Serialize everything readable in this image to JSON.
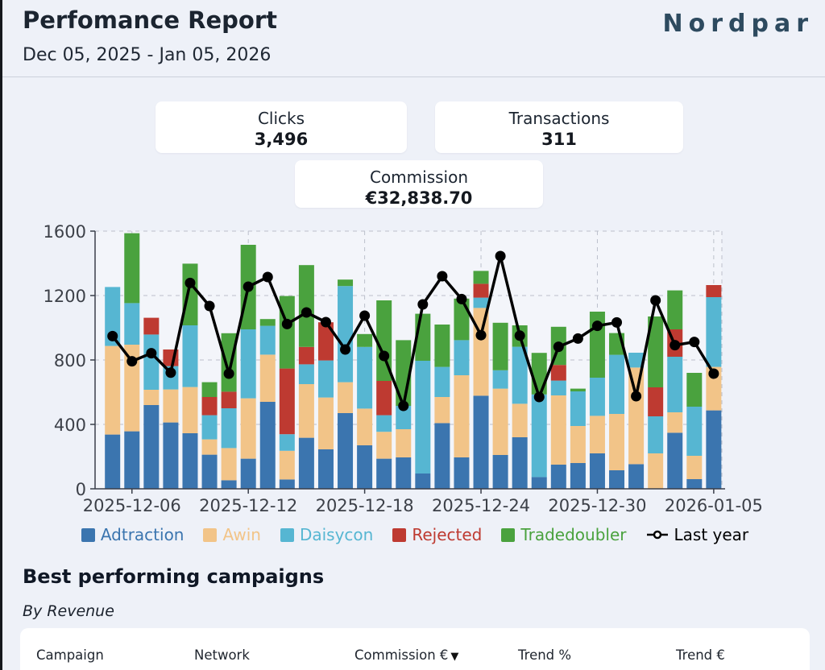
{
  "header": {
    "title": "Perfomance Report",
    "date_range": "Dec 05, 2025 - Jan 05, 2026",
    "logo": "Nordpar"
  },
  "summary_cards": [
    {
      "label": "Clicks",
      "value": "3,496"
    },
    {
      "label": "Transactions",
      "value": "311"
    },
    {
      "label": "Commission",
      "value": "€32,838.70"
    }
  ],
  "chart_data": {
    "type": "bar",
    "stacked": true,
    "categories": [
      "2025-12-05",
      "2025-12-06",
      "2025-12-07",
      "2025-12-08",
      "2025-12-09",
      "2025-12-10",
      "2025-12-11",
      "2025-12-12",
      "2025-12-13",
      "2025-12-14",
      "2025-12-15",
      "2025-12-16",
      "2025-12-17",
      "2025-12-18",
      "2025-12-19",
      "2025-12-20",
      "2025-12-21",
      "2025-12-22",
      "2025-12-23",
      "2025-12-24",
      "2025-12-25",
      "2025-12-26",
      "2025-12-27",
      "2025-12-28",
      "2025-12-29",
      "2025-12-30",
      "2025-12-31",
      "2026-01-01",
      "2026-01-02",
      "2026-01-03",
      "2026-01-04",
      "2026-01-05"
    ],
    "series": [
      {
        "name": "Adtraction",
        "color": "#3B75AF",
        "values": [
          337,
          357,
          520,
          412,
          345,
          212,
          53,
          187,
          540,
          58,
          317,
          245,
          470,
          270,
          187,
          195,
          95,
          408,
          195,
          578,
          210,
          320,
          73,
          150,
          160,
          220,
          115,
          153,
          0,
          348,
          60,
          487
        ]
      },
      {
        "name": "Awin",
        "color": "#F2C488",
        "values": [
          550,
          538,
          95,
          205,
          287,
          95,
          200,
          375,
          293,
          178,
          333,
          322,
          192,
          228,
          167,
          175,
          0,
          162,
          510,
          545,
          412,
          208,
          0,
          430,
          230,
          233,
          350,
          600,
          220,
          127,
          145,
          270
        ]
      },
      {
        "name": "Daisycon",
        "color": "#56B6D2",
        "values": [
          366,
          258,
          343,
          145,
          383,
          150,
          247,
          428,
          179,
          103,
          123,
          230,
          597,
          383,
          103,
          145,
          700,
          187,
          218,
          64,
          114,
          354,
          513,
          92,
          215,
          237,
          367,
          92,
          230,
          345,
          305,
          433
        ]
      },
      {
        "name": "Rejected",
        "color": "#BE3A31",
        "values": [
          0,
          0,
          104,
          103,
          0,
          113,
          103,
          0,
          0,
          408,
          108,
          237,
          0,
          0,
          213,
          0,
          0,
          0,
          0,
          86,
          0,
          0,
          0,
          97,
          0,
          0,
          0,
          0,
          180,
          170,
          0,
          75
        ]
      },
      {
        "name": "Tradedoubler",
        "color": "#4AA23E",
        "values": [
          0,
          434,
          0,
          0,
          383,
          92,
          363,
          525,
          42,
          450,
          508,
          0,
          40,
          80,
          500,
          408,
          292,
          263,
          258,
          80,
          295,
          133,
          258,
          237,
          17,
          410,
          135,
          0,
          440,
          242,
          210,
          0
        ]
      }
    ],
    "line_series": {
      "name": "Last year",
      "color": "#000000",
      "values": [
        948,
        792,
        842,
        721,
        1278,
        1135,
        715,
        1255,
        1315,
        1023,
        1095,
        1035,
        865,
        1075,
        825,
        515,
        1145,
        1320,
        1178,
        954,
        1445,
        951,
        570,
        882,
        933,
        1012,
        1033,
        575,
        1170,
        892,
        912,
        715
      ]
    },
    "ylim": [
      0,
      1600
    ],
    "yticks": [
      0,
      400,
      800,
      1200,
      1600
    ],
    "xtick_labels": [
      "2025-12-06",
      "2025-12-12",
      "2025-12-18",
      "2025-12-24",
      "2025-12-30",
      "2026-01-05"
    ],
    "xtick_indices": [
      1,
      7,
      13,
      19,
      25,
      31
    ],
    "grid": "dashed",
    "legend_position": "bottom"
  },
  "campaigns": {
    "heading": "Best performing campaigns",
    "subheading": "By Revenue",
    "table": {
      "columns": [
        {
          "label": "Campaign",
          "sort_indicator": ""
        },
        {
          "label": "Network",
          "sort_indicator": ""
        },
        {
          "label": "Commission €",
          "sort_indicator": "▼"
        },
        {
          "label": "Trend %",
          "sort_indicator": ""
        },
        {
          "label": "Trend €",
          "sort_indicator": ""
        }
      ]
    }
  }
}
